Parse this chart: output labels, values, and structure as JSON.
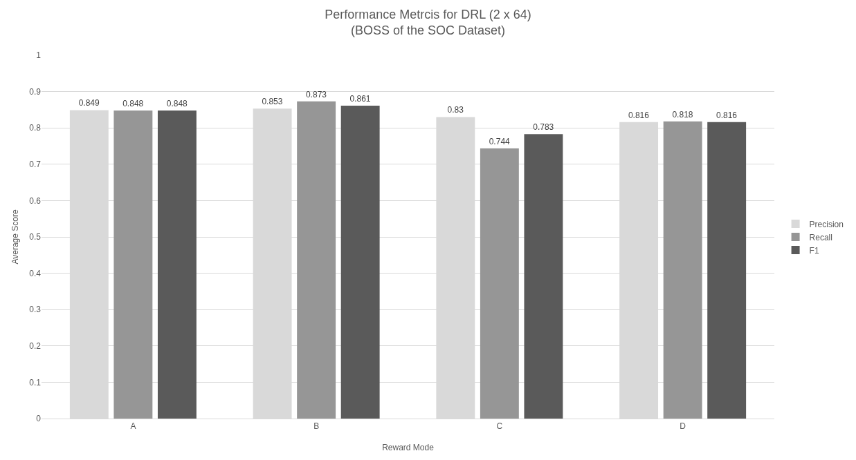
{
  "chart_data": {
    "type": "bar",
    "title": "Performance Metrcis for DRL (2 x 64)",
    "subtitle": "(BOSS of the SOC Dataset)",
    "xlabel": "Reward Mode",
    "ylabel": "Average Score",
    "categories": [
      "A",
      "B",
      "C",
      "D"
    ],
    "series": [
      {
        "name": "Precision",
        "color": "#d9d9d9",
        "values": [
          0.849,
          0.853,
          0.83,
          0.816
        ]
      },
      {
        "name": "Recall",
        "color": "#969696",
        "values": [
          0.848,
          0.873,
          0.744,
          0.818
        ]
      },
      {
        "name": "F1",
        "color": "#5a5a5a",
        "values": [
          0.848,
          0.861,
          0.783,
          0.816
        ]
      }
    ],
    "ylim": [
      0,
      1
    ],
    "yticks": [
      0,
      0.1,
      0.2,
      0.3,
      0.4,
      0.5,
      0.6,
      0.7,
      0.8,
      0.9,
      1
    ],
    "grid": "y",
    "legend": "right",
    "data_labels": true
  }
}
